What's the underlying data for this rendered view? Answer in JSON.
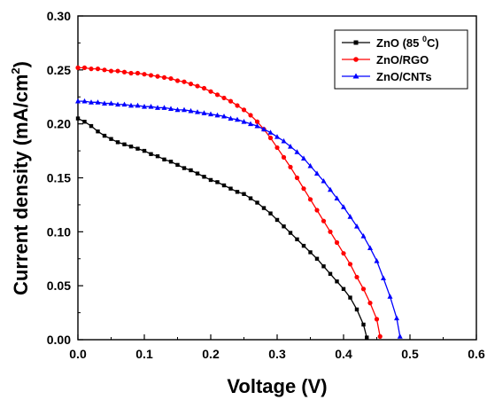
{
  "chart_data": {
    "type": "line",
    "title": "",
    "xlabel": "Voltage (V)",
    "ylabel": "Current density (mA/cm",
    "ylabel_sup": "2",
    "ylabel_tail": ")",
    "xlim": [
      0.0,
      0.6
    ],
    "ylim": [
      0.0,
      0.3
    ],
    "x_ticks": [
      "0.0",
      "0.1",
      "0.2",
      "0.3",
      "0.4",
      "0.5",
      "0.6"
    ],
    "y_ticks": [
      "0.00",
      "0.05",
      "0.10",
      "0.15",
      "0.20",
      "0.25",
      "0.30"
    ],
    "grid": false,
    "legend_position": "top-right",
    "series": [
      {
        "name": "ZnO (85 ",
        "name_sup": "0",
        "name_tail": "C)",
        "color": "#000000",
        "marker": "square",
        "x": [
          0.0,
          0.01,
          0.02,
          0.03,
          0.04,
          0.05,
          0.06,
          0.07,
          0.08,
          0.09,
          0.1,
          0.11,
          0.12,
          0.13,
          0.14,
          0.15,
          0.16,
          0.17,
          0.18,
          0.19,
          0.2,
          0.21,
          0.22,
          0.23,
          0.24,
          0.25,
          0.26,
          0.27,
          0.28,
          0.29,
          0.3,
          0.31,
          0.32,
          0.33,
          0.34,
          0.35,
          0.36,
          0.37,
          0.38,
          0.39,
          0.4,
          0.41,
          0.42,
          0.43,
          0.435
        ],
        "y": [
          0.205,
          0.202,
          0.198,
          0.193,
          0.189,
          0.186,
          0.183,
          0.181,
          0.179,
          0.177,
          0.175,
          0.172,
          0.17,
          0.167,
          0.165,
          0.162,
          0.159,
          0.157,
          0.154,
          0.151,
          0.148,
          0.146,
          0.143,
          0.14,
          0.137,
          0.135,
          0.131,
          0.127,
          0.122,
          0.117,
          0.111,
          0.105,
          0.099,
          0.093,
          0.087,
          0.081,
          0.075,
          0.068,
          0.061,
          0.054,
          0.047,
          0.039,
          0.028,
          0.014,
          0.002
        ]
      },
      {
        "name": "ZnO/RGO",
        "color": "#ff0000",
        "marker": "circle",
        "x": [
          0.0,
          0.01,
          0.02,
          0.03,
          0.04,
          0.05,
          0.06,
          0.07,
          0.08,
          0.09,
          0.1,
          0.11,
          0.12,
          0.13,
          0.14,
          0.15,
          0.16,
          0.17,
          0.18,
          0.19,
          0.2,
          0.21,
          0.22,
          0.23,
          0.24,
          0.25,
          0.26,
          0.27,
          0.28,
          0.29,
          0.3,
          0.31,
          0.32,
          0.33,
          0.34,
          0.35,
          0.36,
          0.37,
          0.38,
          0.39,
          0.4,
          0.41,
          0.42,
          0.43,
          0.44,
          0.45,
          0.455
        ],
        "y": [
          0.252,
          0.252,
          0.251,
          0.251,
          0.25,
          0.249,
          0.249,
          0.248,
          0.247,
          0.247,
          0.246,
          0.245,
          0.244,
          0.243,
          0.242,
          0.24,
          0.239,
          0.237,
          0.235,
          0.233,
          0.23,
          0.227,
          0.224,
          0.221,
          0.217,
          0.213,
          0.208,
          0.202,
          0.195,
          0.187,
          0.178,
          0.169,
          0.16,
          0.15,
          0.14,
          0.13,
          0.12,
          0.11,
          0.1,
          0.09,
          0.08,
          0.07,
          0.058,
          0.047,
          0.034,
          0.019,
          0.003
        ]
      },
      {
        "name": "ZnO/CNTs",
        "color": "#0000ff",
        "marker": "triangle",
        "x": [
          0.0,
          0.01,
          0.02,
          0.03,
          0.04,
          0.05,
          0.06,
          0.07,
          0.08,
          0.09,
          0.1,
          0.11,
          0.12,
          0.13,
          0.14,
          0.15,
          0.16,
          0.17,
          0.18,
          0.19,
          0.2,
          0.21,
          0.22,
          0.23,
          0.24,
          0.25,
          0.26,
          0.27,
          0.28,
          0.29,
          0.3,
          0.31,
          0.32,
          0.33,
          0.34,
          0.35,
          0.36,
          0.37,
          0.38,
          0.39,
          0.4,
          0.41,
          0.42,
          0.43,
          0.44,
          0.45,
          0.46,
          0.47,
          0.48,
          0.485
        ],
        "y": [
          0.221,
          0.221,
          0.22,
          0.22,
          0.219,
          0.219,
          0.218,
          0.218,
          0.217,
          0.217,
          0.216,
          0.216,
          0.215,
          0.215,
          0.214,
          0.213,
          0.213,
          0.212,
          0.211,
          0.21,
          0.209,
          0.208,
          0.207,
          0.205,
          0.204,
          0.202,
          0.2,
          0.198,
          0.195,
          0.192,
          0.188,
          0.184,
          0.179,
          0.174,
          0.168,
          0.161,
          0.154,
          0.147,
          0.139,
          0.131,
          0.123,
          0.114,
          0.105,
          0.096,
          0.085,
          0.073,
          0.057,
          0.04,
          0.02,
          0.003
        ]
      }
    ]
  }
}
